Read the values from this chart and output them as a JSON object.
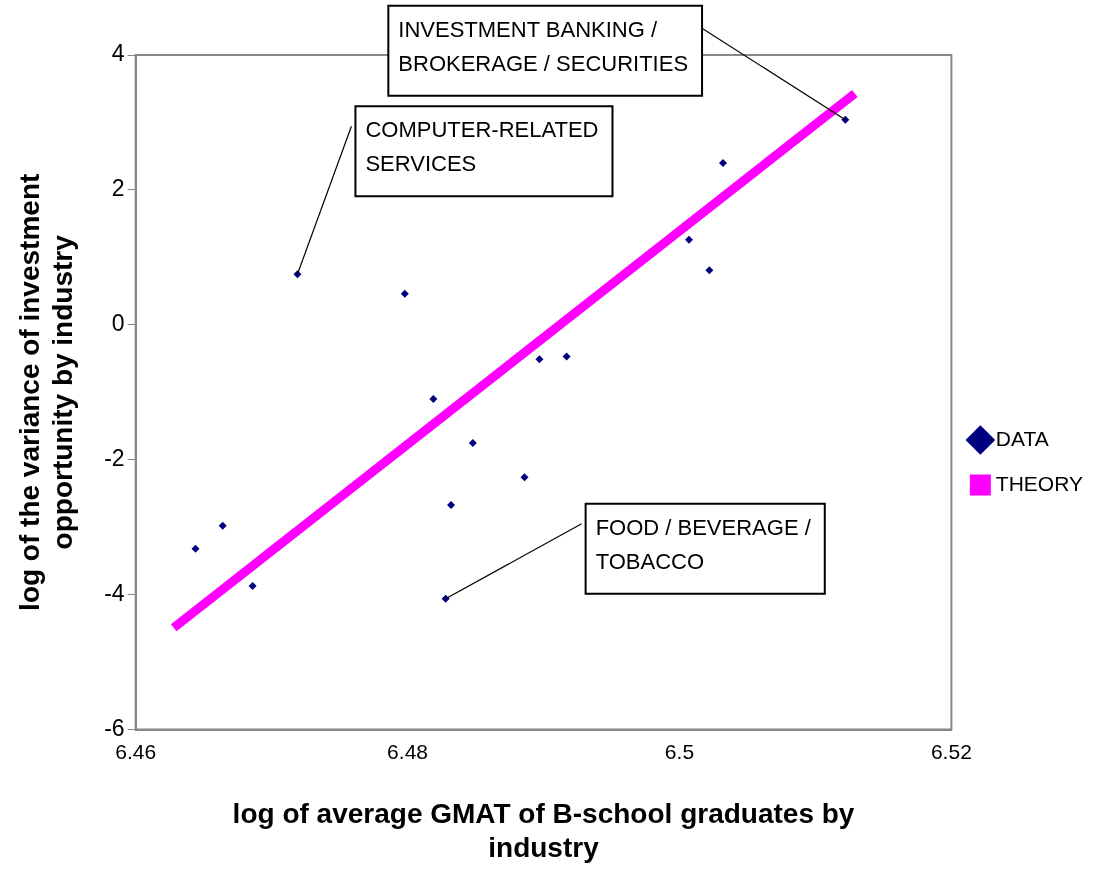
{
  "chart_data": {
    "type": "scatter",
    "xlabel": "log of average GMAT of B-school graduates by industry",
    "ylabel": "log of the variance of investment opportunity by industry",
    "xlim": [
      6.46,
      6.52
    ],
    "xticks": [
      6.46,
      6.48,
      6.5,
      6.52
    ],
    "ylim": [
      -6,
      4
    ],
    "yticks": [
      -6,
      -4,
      -2,
      0,
      2,
      4
    ],
    "grid": false,
    "legend": "right",
    "series": [
      {
        "name": "DATA",
        "color": "#000080",
        "marker": "diamond",
        "x": [
          6.4644,
          6.4664,
          6.4686,
          6.4719,
          6.4798,
          6.4819,
          6.4828,
          6.4832,
          6.4848,
          6.4886,
          6.4897,
          6.4917,
          6.5007,
          6.5022,
          6.5032,
          6.5122
        ],
        "values": [
          -3.32,
          -2.98,
          -3.87,
          0.75,
          0.46,
          -1.1,
          -4.06,
          -2.67,
          -1.75,
          -2.26,
          -0.51,
          -0.47,
          1.26,
          0.81,
          2.4,
          3.04
        ]
      },
      {
        "name": "THEORY",
        "color": "#ff00ff",
        "type": "line",
        "marker": "none",
        "x": [
          6.4628,
          6.5129
        ],
        "values": [
          -4.49,
          3.43
        ]
      }
    ],
    "annotations": [
      {
        "text": "INVESTMENT BANKING / BROKERAGE / SECURITIES",
        "x": 6.5122,
        "y": 3.04
      },
      {
        "text": "COMPUTER-RELATED SERVICES",
        "x": 6.4719,
        "y": 0.75
      },
      {
        "text": "FOOD / BEVERAGE / TOBACCO",
        "x": 6.4828,
        "y": -4.06
      }
    ]
  }
}
